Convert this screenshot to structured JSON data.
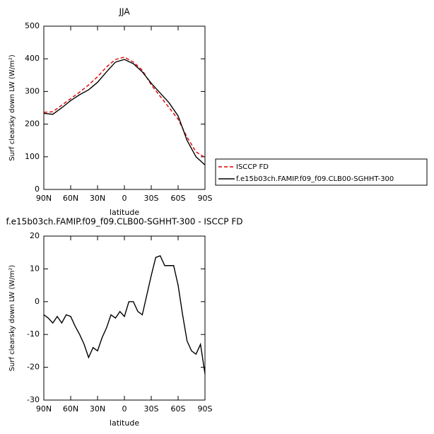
{
  "chart_data": [
    {
      "type": "line",
      "title": "JJA",
      "xlabel": "latitude",
      "ylabel": "Surf clearsky down LW (W/m²)",
      "x": [
        90,
        80,
        70,
        60,
        50,
        40,
        30,
        20,
        10,
        0,
        -10,
        -20,
        -30,
        -40,
        -50,
        -60,
        -70,
        -80,
        -90
      ],
      "series": [
        {
          "name": "ISCCP FD",
          "color": "#e00000",
          "dash": true,
          "values": [
            236,
            238,
            258,
            278,
            298,
            320,
            345,
            375,
            398,
            405,
            390,
            365,
            320,
            285,
            250,
            215,
            160,
            115,
            98
          ]
        },
        {
          "name": "f.e15b03ch.FAMIP.f09_f09.CLB00-SGHHT-300",
          "color": "#000000",
          "dash": false,
          "values": [
            233,
            230,
            250,
            272,
            290,
            305,
            328,
            360,
            390,
            398,
            385,
            360,
            325,
            295,
            265,
            225,
            150,
            100,
            75
          ]
        }
      ],
      "xlim": [
        90,
        -90
      ],
      "ylim": [
        0,
        500
      ],
      "xticks": [
        {
          "value": 90,
          "label": "90N"
        },
        {
          "value": 60,
          "label": "60N"
        },
        {
          "value": 30,
          "label": "30N"
        },
        0,
        {
          "value": -30,
          "label": "30S"
        },
        {
          "value": -60,
          "label": "60S"
        },
        {
          "value": -90,
          "label": "90S"
        }
      ],
      "yticks": [
        0,
        100,
        200,
        300,
        400,
        500
      ],
      "legend": "right"
    },
    {
      "type": "line",
      "title": "f.e15b03ch.FAMIP.f09_f09.CLB00-SGHHT-300 - ISCCP FD",
      "xlabel": "latitude",
      "ylabel": "Surf clearsky down LW (W/m²)",
      "x": [
        90,
        85,
        80,
        75,
        70,
        65,
        60,
        55,
        50,
        45,
        40,
        35,
        30,
        25,
        20,
        15,
        10,
        5,
        0,
        -5,
        -10,
        -15,
        -20,
        -25,
        -30,
        -35,
        -40,
        -45,
        -50,
        -55,
        -60,
        -65,
        -70,
        -75,
        -80,
        -85,
        -90
      ],
      "series": [
        {
          "color": "#000000",
          "dash": false,
          "values": [
            -4,
            -5,
            -6.5,
            -4.5,
            -6.5,
            -4,
            -4.5,
            -7.5,
            -10,
            -13,
            -17,
            -14,
            -15,
            -11,
            -8,
            -4,
            -5,
            -3,
            -4.5,
            0,
            0,
            -3,
            -4,
            2,
            8,
            13.5,
            14,
            11,
            11,
            11,
            5,
            -4,
            -12,
            -15,
            -16,
            -13,
            -22
          ]
        }
      ],
      "xlim": [
        90,
        -90
      ],
      "ylim": [
        -30,
        20
      ],
      "xticks": [
        {
          "value": 90,
          "label": "90N"
        },
        {
          "value": 60,
          "label": "60N"
        },
        {
          "value": 30,
          "label": "30N"
        },
        0,
        {
          "value": -30,
          "label": "30S"
        },
        {
          "value": -60,
          "label": "60S"
        },
        {
          "value": -90,
          "label": "90S"
        }
      ],
      "yticks": [
        -30,
        -20,
        -10,
        0,
        10,
        20
      ]
    }
  ]
}
